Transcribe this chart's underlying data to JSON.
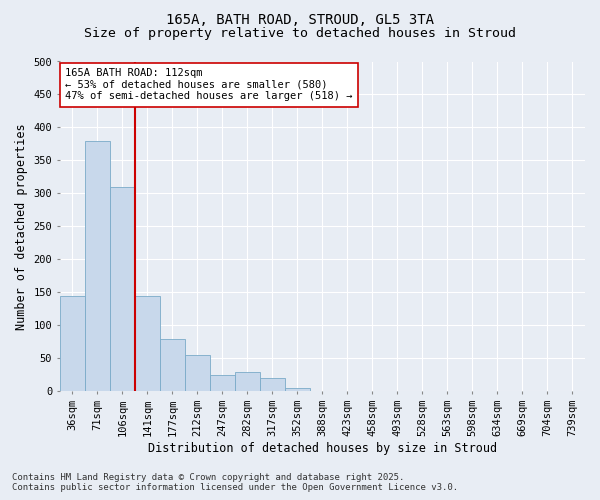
{
  "title_line1": "165A, BATH ROAD, STROUD, GL5 3TA",
  "title_line2": "Size of property relative to detached houses in Stroud",
  "xlabel": "Distribution of detached houses by size in Stroud",
  "ylabel": "Number of detached properties",
  "bar_labels": [
    "36sqm",
    "71sqm",
    "106sqm",
    "141sqm",
    "177sqm",
    "212sqm",
    "247sqm",
    "282sqm",
    "317sqm",
    "352sqm",
    "388sqm",
    "423sqm",
    "458sqm",
    "493sqm",
    "528sqm",
    "563sqm",
    "598sqm",
    "634sqm",
    "669sqm",
    "704sqm",
    "739sqm"
  ],
  "bar_values": [
    145,
    380,
    310,
    145,
    80,
    55,
    25,
    30,
    20,
    5,
    1,
    0,
    0,
    0,
    0,
    0,
    0,
    0,
    0,
    0,
    1
  ],
  "bar_color": "#c8d8eb",
  "bar_edge_color": "#7aaac8",
  "vline_color": "#cc0000",
  "annotation_text": "165A BATH ROAD: 112sqm\n← 53% of detached houses are smaller (580)\n47% of semi-detached houses are larger (518) →",
  "annotation_box_facecolor": "#ffffff",
  "annotation_box_edgecolor": "#cc0000",
  "ylim": [
    0,
    500
  ],
  "yticks": [
    0,
    50,
    100,
    150,
    200,
    250,
    300,
    350,
    400,
    450,
    500
  ],
  "bg_color": "#e8edf4",
  "plot_bg_color": "#e8edf4",
  "grid_color": "#ffffff",
  "footer_text": "Contains HM Land Registry data © Crown copyright and database right 2025.\nContains public sector information licensed under the Open Government Licence v3.0.",
  "title_fontsize": 10,
  "subtitle_fontsize": 9.5,
  "axis_label_fontsize": 8.5,
  "tick_fontsize": 7.5,
  "annotation_fontsize": 7.5,
  "footer_fontsize": 6.5
}
